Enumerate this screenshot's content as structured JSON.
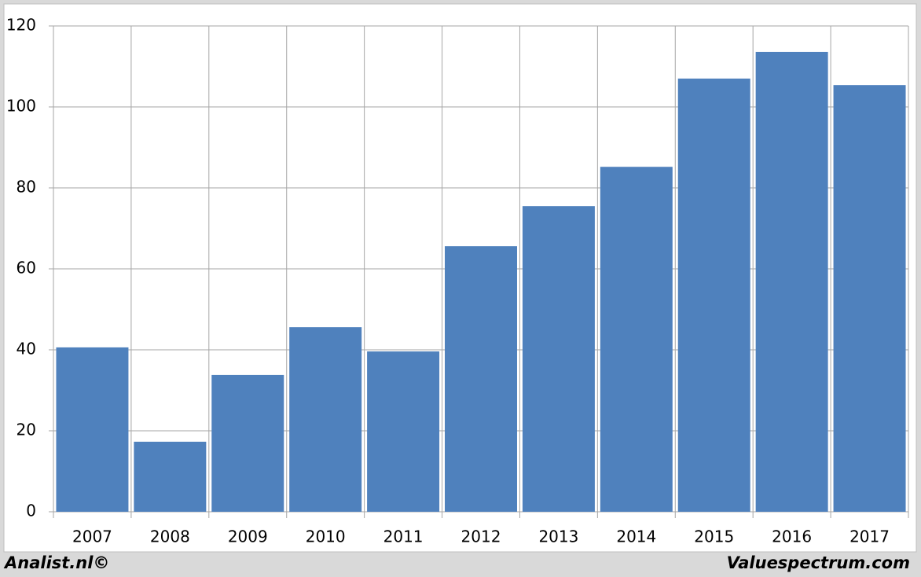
{
  "chart_data": {
    "type": "bar",
    "categories": [
      "2007",
      "2008",
      "2009",
      "2010",
      "2011",
      "2012",
      "2013",
      "2014",
      "2015",
      "2016",
      "2017"
    ],
    "values": [
      40.6,
      17.3,
      33.8,
      45.6,
      39.6,
      65.6,
      75.5,
      85.2,
      107,
      113.6,
      105.4
    ],
    "color": "#4f81bd",
    "ylim": [
      0,
      120
    ],
    "yticks": [
      0,
      20,
      40,
      60,
      80,
      100,
      120
    ],
    "grid": true,
    "footer_left": "Analist.nl©",
    "footer_right": "Valuespectrum.com"
  }
}
